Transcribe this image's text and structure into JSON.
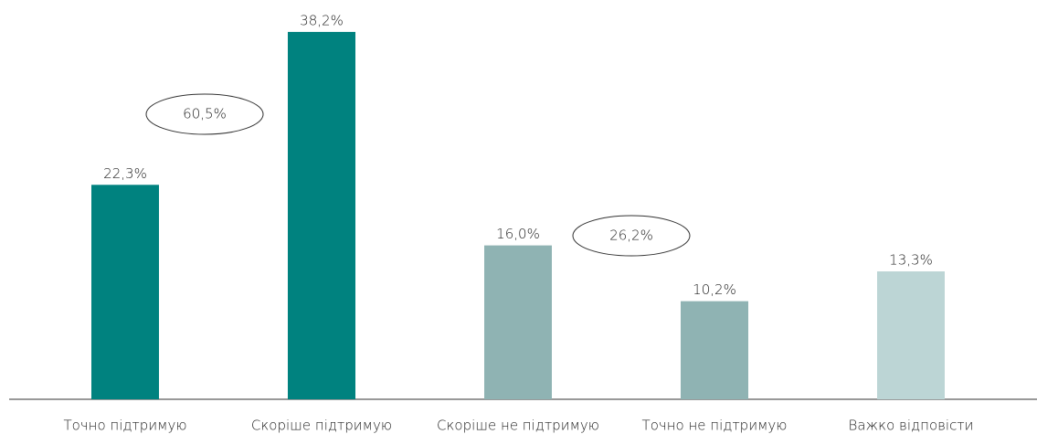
{
  "chart_data": {
    "type": "bar",
    "categories": [
      "Точно підтримую",
      "Скоріше підтримую",
      "Скоріше не підтримую",
      "Точно не підтримую",
      "Важко відповісти"
    ],
    "values": [
      22.3,
      38.2,
      16.0,
      10.2,
      13.3
    ],
    "value_labels": [
      "22,3%",
      "38,2%",
      "16,0%",
      "10,2%",
      "13,3%"
    ],
    "colors": [
      "#00827f",
      "#00827f",
      "#8fb3b3",
      "#8fb3b3",
      "#bcd5d5"
    ],
    "ylim": [
      0,
      40
    ],
    "annotations": [
      "60,5%",
      "26,2%"
    ]
  }
}
